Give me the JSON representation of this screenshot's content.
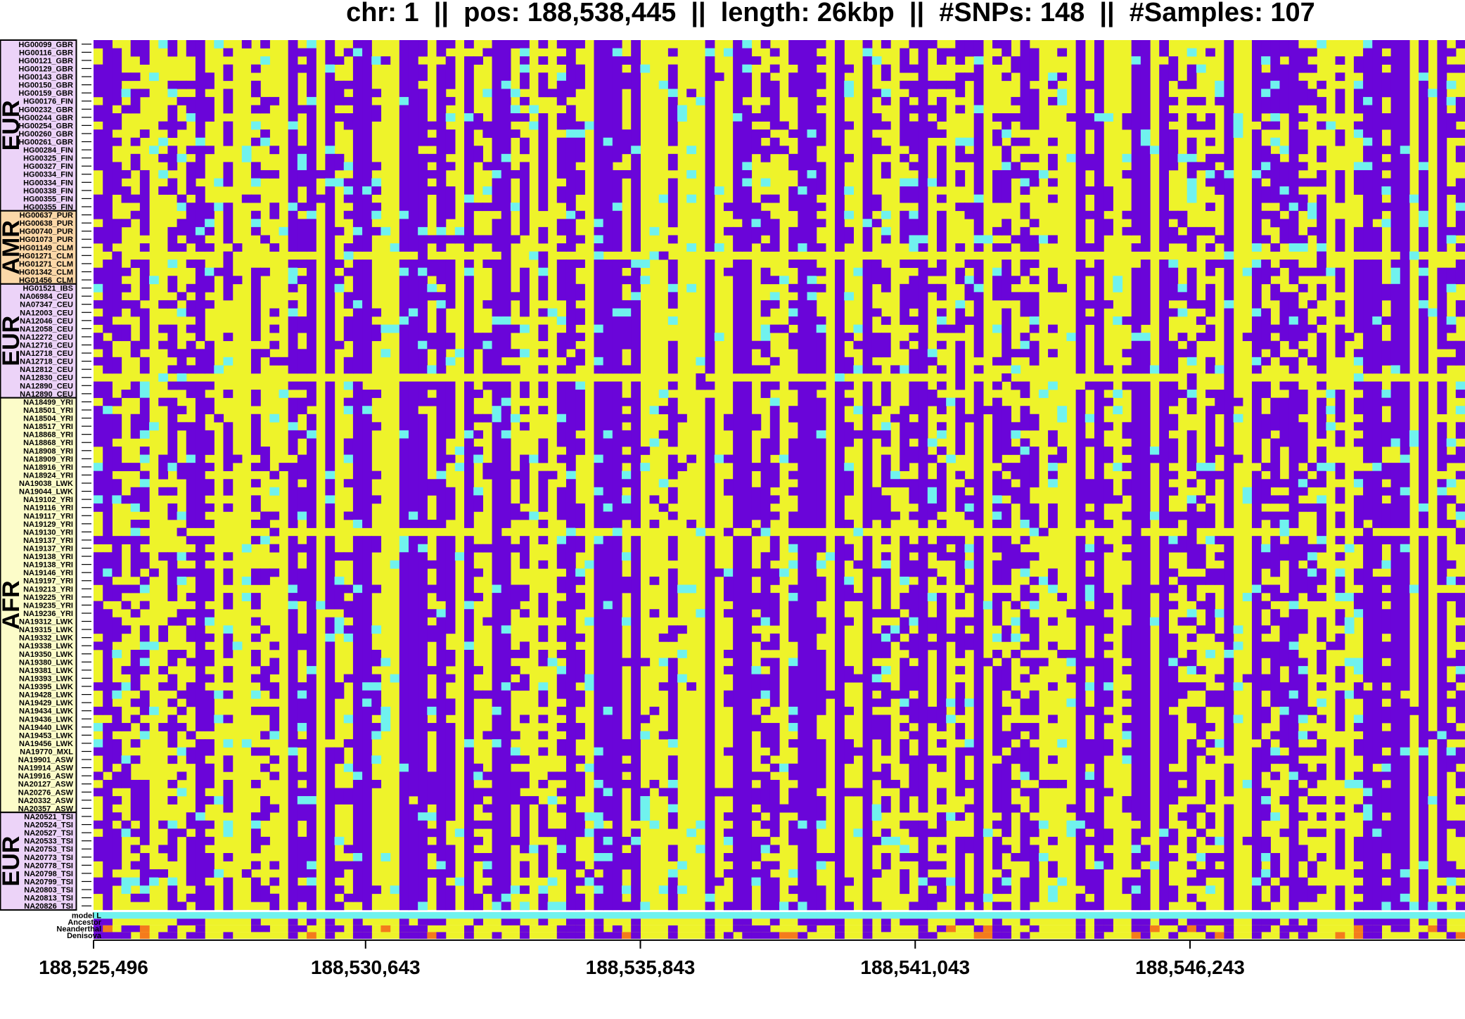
{
  "chart_data": {
    "type": "heatmap",
    "title": "chr: 1  ||  pos: 188,538,445  ||  length: 26kbp  ||  #SNPs: 148  ||  #Samples: 107",
    "xlabel": "",
    "ylabel": "",
    "x_axis": {
      "range": [
        188525496,
        188551446
      ],
      "ticks": [
        188525496,
        188530643,
        188535843,
        188541043,
        188546243
      ],
      "tick_labels": [
        "188,525,496",
        "188,530,643",
        "188,535,843",
        "188,541,043",
        "188,546,243"
      ]
    },
    "n_snps": 148,
    "n_samples": 107,
    "colors": {
      "major_allele": "#eef32a",
      "minor_homozygous": "#6a05d9",
      "heterozygous": "#70f2ee",
      "ancient_derived": "#f47b1c",
      "EUR": "#ecd3f8",
      "AMR": "#fcd8a8",
      "AFR": "#fcfcc9"
    },
    "groups": [
      {
        "name": "EUR",
        "count": 21
      },
      {
        "name": "AMR",
        "count": 9
      },
      {
        "name": "EUR",
        "count": 14
      },
      {
        "name": "AFR",
        "count": 51
      },
      {
        "name": "EUR",
        "count": 12
      }
    ],
    "annotation_rows": [
      "model L",
      "Ancestor",
      "Neanderthal",
      "Denisova"
    ],
    "samples": [
      "HG00099_GBR",
      "HG00116_GBR",
      "HG00121_GBR",
      "HG00129_GBR",
      "HG00143_GBR",
      "HG00150_GBR",
      "HG00159_GBR",
      "HG00176_FIN",
      "HG00232_GBR",
      "HG00244_GBR",
      "HG00254_GBR",
      "HG00260_GBR",
      "HG00261_GBR",
      "HG00284_FIN",
      "HG00325_FIN",
      "HG00327_FIN",
      "HG00334_FIN",
      "HG00334_FIN",
      "HG00338_FIN",
      "HG00355_FIN",
      "HG00355_FIN",
      "HG00637_PUR",
      "HG00638_PUR",
      "HG00740_PUR",
      "HG01073_PUR",
      "HG01149_CLM",
      "HG01271_CLM",
      "HG01271_CLM",
      "HG01342_CLM",
      "HG01456_CLM",
      "HG01521_IBS",
      "NA06984_CEU",
      "NA07347_CEU",
      "NA12003_CEU",
      "NA12046_CEU",
      "NA12058_CEU",
      "NA12272_CEU",
      "NA12716_CEU",
      "NA12718_CEU",
      "NA12718_CEU",
      "NA12812_CEU",
      "NA12830_CEU",
      "NA12890_CEU",
      "NA12890_CEU",
      "NA18499_YRI",
      "NA18501_YRI",
      "NA18504_YRI",
      "NA18517_YRI",
      "NA18868_YRI",
      "NA18868_YRI",
      "NA18908_YRI",
      "NA18909_YRI",
      "NA18916_YRI",
      "NA18924_YRI",
      "NA19038_LWK",
      "NA19044_LWK",
      "NA19102_YRI",
      "NA19116_YRI",
      "NA19117_YRI",
      "NA19129_YRI",
      "NA19130_YRI",
      "NA19137_YRI",
      "NA19137_YRI",
      "NA19138_YRI",
      "NA19138_YRI",
      "NA19146_YRI",
      "NA19197_YRI",
      "NA19213_YRI",
      "NA19225_YRI",
      "NA19235_YRI",
      "NA19236_YRI",
      "NA19312_LWK",
      "NA19315_LWK",
      "NA19332_LWK",
      "NA19338_LWK",
      "NA19350_LWK",
      "NA19380_LWK",
      "NA19381_LWK",
      "NA19393_LWK",
      "NA19395_LWK",
      "NA19428_LWK",
      "NA19429_LWK",
      "NA19434_LWK",
      "NA19436_LWK",
      "NA19440_LWK",
      "NA19453_LWK",
      "NA19456_LWK",
      "NA19770_MXL",
      "NA19901_ASW",
      "NA19914_ASW",
      "NA19916_ASW",
      "NA20127_ASW",
      "NA20276_ASW",
      "NA20332_ASW",
      "NA20357_ASW",
      "NA20521_TSI",
      "NA20524_TSI",
      "NA20527_TSI",
      "NA20533_TSI",
      "NA20753_TSI",
      "NA20773_TSI",
      "NA20778_TSI",
      "NA20798_TSI",
      "NA20799_TSI",
      "NA20803_TSI",
      "NA20813_TSI",
      "NA20826_TSI"
    ]
  }
}
